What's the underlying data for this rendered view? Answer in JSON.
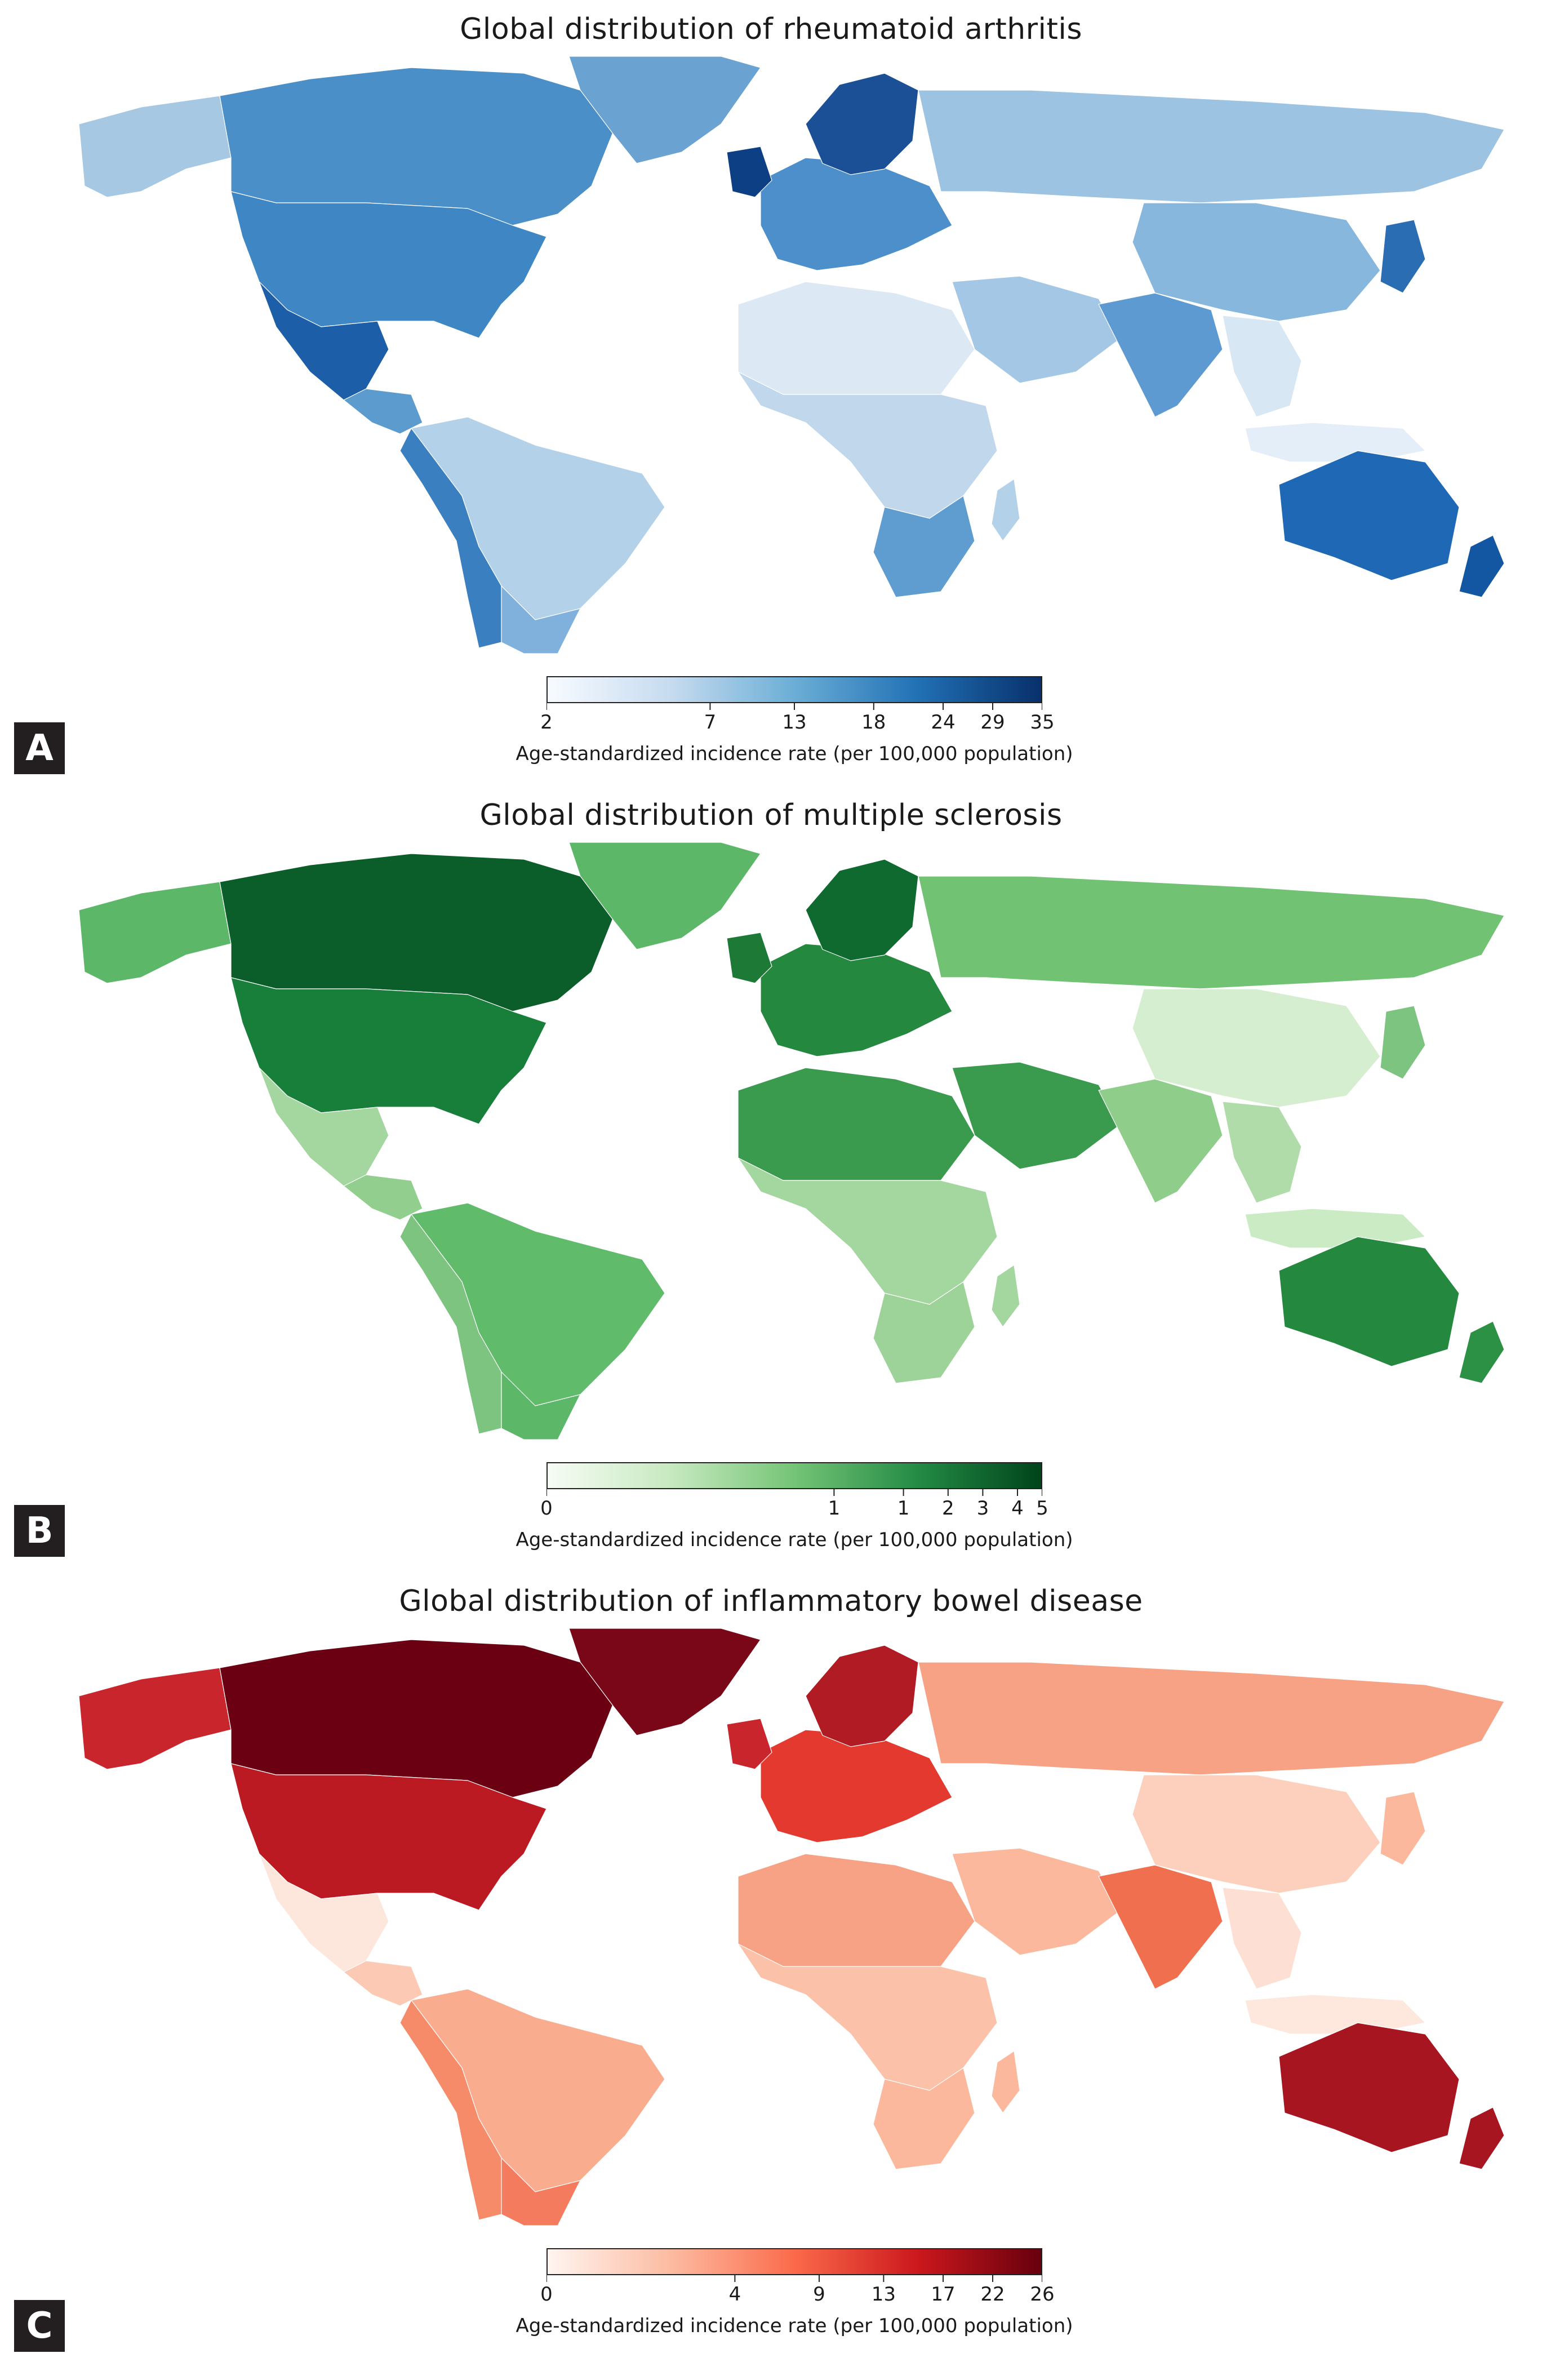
{
  "panels": [
    {
      "letter": "A",
      "title": "Global distribution of rheumatoid arthritis",
      "legend": {
        "ticks": [
          "2",
          "7",
          "13",
          "18",
          "24",
          "29",
          "35"
        ],
        "caption": "Age-standardized incidence rate (per 100,000 population)",
        "colors": [
          "#f7fbff",
          "#c6dbef",
          "#6baed6",
          "#2171b5",
          "#08306b"
        ]
      },
      "regions": {
        "alaska": "#a6c8e3",
        "canada": "#4a8fc7",
        "greenland": "#6aa3d2",
        "usa": "#3f86c4",
        "mexico": "#1d5ea8",
        "central_america": "#5c9bcd",
        "south_america": "#b3d1e9",
        "peru_chile": "#3a7fc0",
        "argentina": "#7fb1dc",
        "europe": "#4d8fcb",
        "uk": "#0d3f85",
        "scandinavia": "#1b4f96",
        "russia": "#9cc3e2",
        "north_africa": "#dce9f5",
        "sub_saharan": "#c0d7ec",
        "southern_africa": "#5f9cd0",
        "middle_east": "#a3c7e4",
        "india": "#5d9ad1",
        "china": "#87b7dd",
        "japan": "#2a6db2",
        "southeast_asia": "#d8e7f4",
        "indonesia": "#e4eef8",
        "australia": "#1f68b5",
        "new_zealand": "#1356a2",
        "madagascar": "#b3d1e9"
      }
    },
    {
      "letter": "B",
      "title": "Global distribution of multiple sclerosis",
      "legend": {
        "ticks": [
          "0",
          "1",
          "1",
          "2",
          "3",
          "4",
          "5"
        ],
        "caption": "Age-standardized incidence rate (per 100,000 population)",
        "colors": [
          "#f7fcf5",
          "#c7e9c0",
          "#74c476",
          "#238b45",
          "#00441b"
        ]
      },
      "regions": {
        "alaska": "#5cb868",
        "canada": "#0b5e2a",
        "greenland": "#5cb868",
        "usa": "#187f3a",
        "mexico": "#a4d69f",
        "central_america": "#92cf8e",
        "south_america": "#60bb6a",
        "peru_chile": "#7cc47f",
        "argentina": "#5cb868",
        "europe": "#24883f",
        "uk": "#1c7a36",
        "scandinavia": "#0e6a2f",
        "russia": "#72c274",
        "north_africa": "#3a9a4e",
        "sub_saharan": "#a4d69f",
        "southern_africa": "#9dd399",
        "middle_east": "#3a9a4e",
        "india": "#8fcd8b",
        "china": "#d4eecf",
        "japan": "#7cc47f",
        "southeast_asia": "#b0dca9",
        "indonesia": "#cbebc5",
        "australia": "#24883f",
        "new_zealand": "#2c9145",
        "madagascar": "#a4d69f"
      }
    },
    {
      "letter": "C",
      "title": "Global distribution of inflammatory bowel disease",
      "legend": {
        "ticks": [
          "0",
          "4",
          "9",
          "13",
          "17",
          "22",
          "26"
        ],
        "caption": "Age-standardized incidence rate (per 100,000 population)",
        "colors": [
          "#fff5f0",
          "#fcbba1",
          "#fb6a4a",
          "#cb181d",
          "#67000d"
        ]
      },
      "regions": {
        "alaska": "#c8262c",
        "canada": "#6b0012",
        "greenland": "#7a0718",
        "usa": "#bb1a22",
        "mexico": "#fde6dc",
        "central_america": "#fccab4",
        "south_america": "#f9ac8e",
        "peru_chile": "#f68b6a",
        "argentina": "#f47b5d",
        "europe": "#e4392f",
        "uk": "#c8262c",
        "scandinavia": "#b01b24",
        "russia": "#f7a285",
        "north_africa": "#f7a285",
        "sub_saharan": "#fcc2a9",
        "southern_africa": "#fbb89d",
        "middle_east": "#fbb89d",
        "india": "#f06f4f",
        "china": "#fcd0bd",
        "japan": "#fbb89d",
        "southeast_asia": "#fde0d3",
        "indonesia": "#fee7dc",
        "australia": "#a71520",
        "new_zealand": "#a71520",
        "madagascar": "#fbb89d"
      }
    }
  ]
}
